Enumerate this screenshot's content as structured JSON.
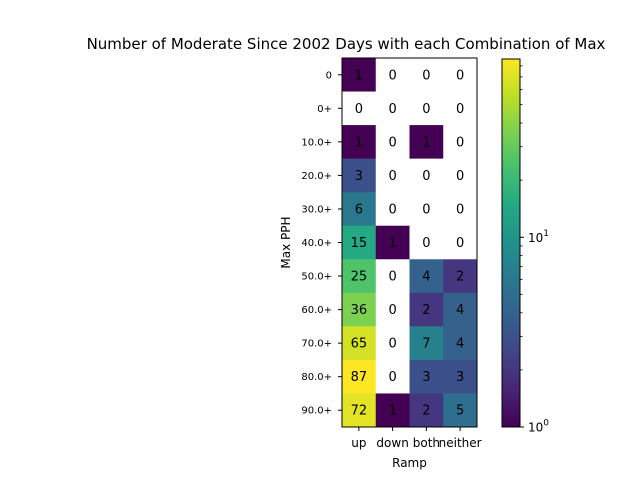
{
  "chart_data": {
    "type": "heatmap",
    "title": "Number of Moderate Since 2002 Days with each Combination of Max",
    "xlabel": "Ramp",
    "ylabel": "Max PPH",
    "x_categories": [
      "up",
      "down",
      "both",
      "neither"
    ],
    "y_categories": [
      "0",
      "0+",
      "10.0+",
      "20.0+",
      "30.0+",
      "40.0+",
      "50.0+",
      "60.0+",
      "70.0+",
      "80.0+",
      "90.0+"
    ],
    "values": [
      [
        1,
        0,
        0,
        0
      ],
      [
        0,
        0,
        0,
        0
      ],
      [
        1,
        0,
        1,
        0
      ],
      [
        3,
        0,
        0,
        0
      ],
      [
        6,
        0,
        0,
        0
      ],
      [
        15,
        1,
        0,
        0
      ],
      [
        25,
        0,
        4,
        2
      ],
      [
        36,
        0,
        2,
        4
      ],
      [
        65,
        0,
        7,
        4
      ],
      [
        87,
        0,
        3,
        3
      ],
      [
        72,
        1,
        2,
        5
      ]
    ],
    "colorscale": "viridis",
    "color_scale_type": "log",
    "zero_color": "#ffffff",
    "colorbar": {
      "range": [
        1,
        87
      ],
      "major_ticks": [
        1,
        10
      ],
      "major_tick_labels": [
        "10^0",
        "10^1"
      ],
      "minor_ticks": [
        2,
        3,
        4,
        5,
        6,
        7,
        8,
        9,
        20,
        30,
        40,
        50,
        60,
        70,
        80
      ]
    }
  }
}
